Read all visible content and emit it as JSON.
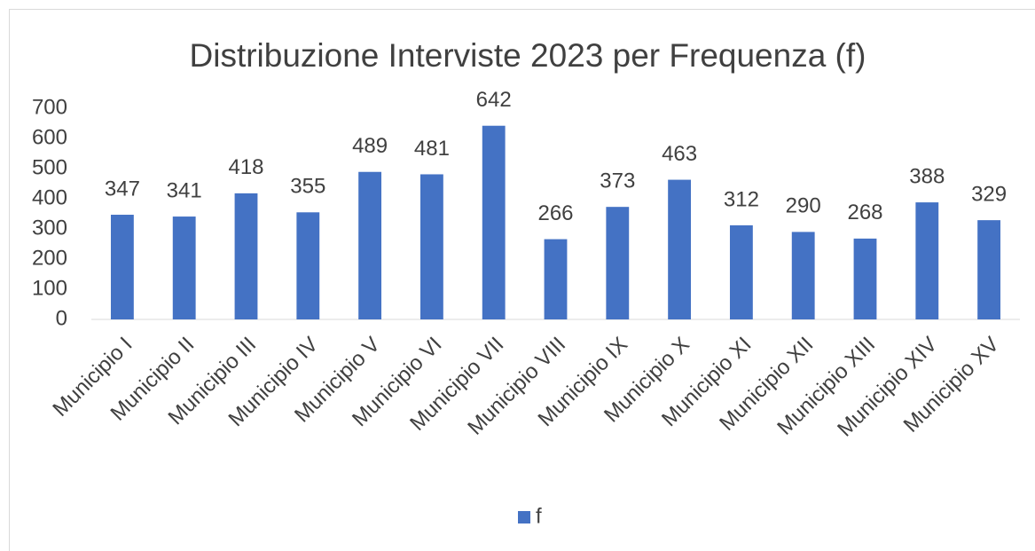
{
  "chart_data": {
    "type": "bar",
    "title": "Distribuzione Interviste 2023 per Frequenza (f)",
    "categories": [
      "Municipio I",
      "Municipio II",
      "Municipio III",
      "Municipio IV",
      "Municipio V",
      "Municipio VI",
      "Municipio VII",
      "Municipio VIII",
      "Municipio IX",
      "Municipio X",
      "Municipio XI",
      "Municipio XII",
      "Municipio XIII",
      "Municipio XIV",
      "Municipio XV"
    ],
    "series": [
      {
        "name": "f",
        "color": "#4472c4",
        "values": [
          347,
          341,
          418,
          355,
          489,
          481,
          642,
          266,
          373,
          463,
          312,
          290,
          268,
          388,
          329
        ]
      }
    ],
    "ylim": [
      0,
      700
    ],
    "yticks": [
      0,
      100,
      200,
      300,
      400,
      500,
      600,
      700
    ],
    "grid": false,
    "legend": "bottom",
    "data_labels": true
  }
}
